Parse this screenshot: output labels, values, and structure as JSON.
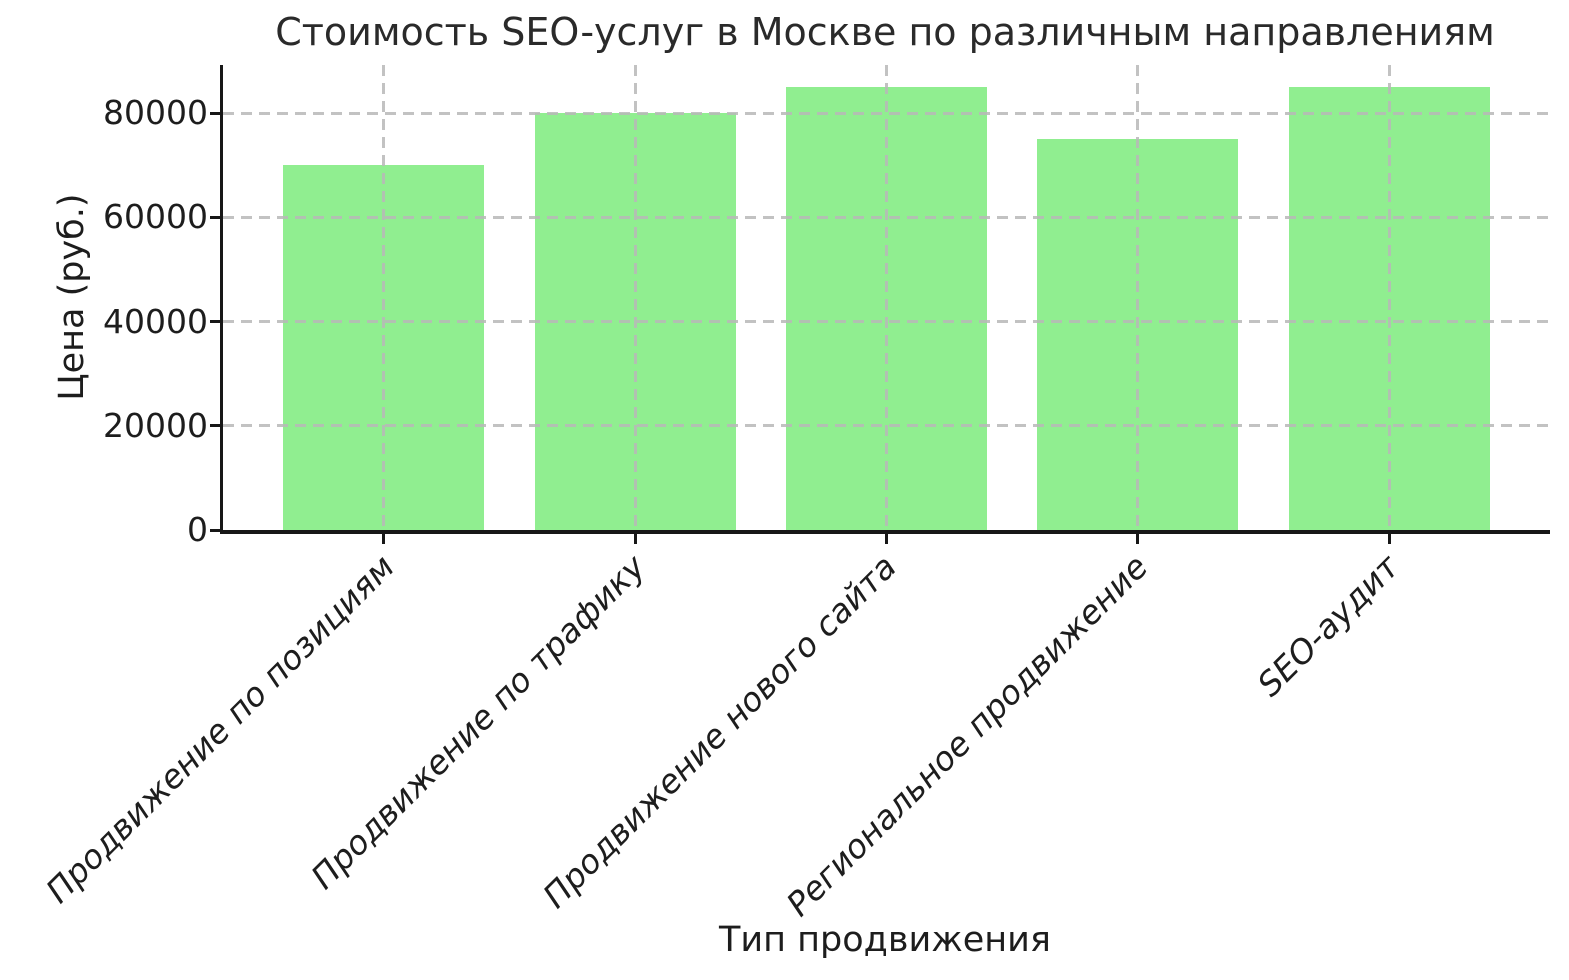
{
  "chart_data": {
    "type": "bar",
    "title": "Стоимость SEO-услуг в Москве по различным направлениям",
    "xlabel": "Тип продвижения",
    "ylabel": "Цена (руб.)",
    "categories": [
      "Продвижение по позициям",
      "Продвижение по трафику",
      "Продвижение нового сайта",
      "Региональное продвижение",
      "SEO-аудит"
    ],
    "values": [
      70000,
      80000,
      85000,
      75000,
      85000
    ],
    "yticks": [
      0,
      20000,
      40000,
      60000,
      80000
    ],
    "ylim": [
      0,
      89250
    ],
    "bar_color": "#90EE90",
    "grid": true,
    "grid_style": "dashed",
    "grid_color": "#bbbbbb",
    "background": "#ffffff",
    "text_color": "#1d1d1d",
    "legend": null
  }
}
